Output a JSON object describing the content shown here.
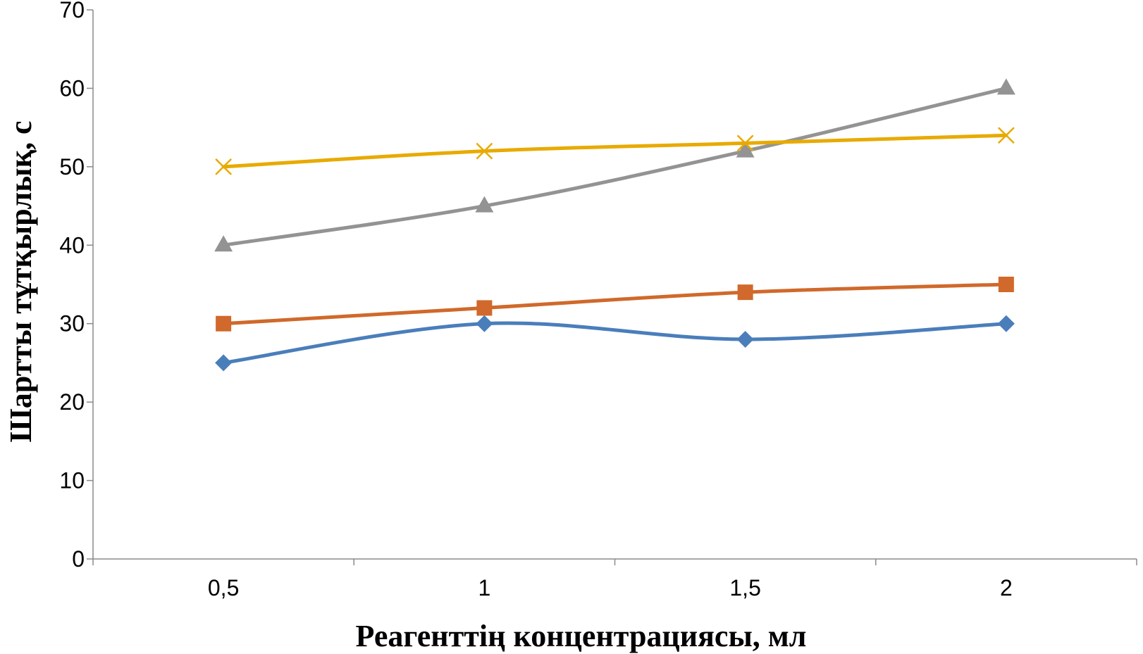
{
  "chart_data": {
    "type": "line",
    "categories": [
      "0,5",
      "1",
      "1,5",
      "2"
    ],
    "xlabel": "Реагенттің концентрациясы, мл",
    "ylabel": "Шартты тұтқырлық, с",
    "ylim": [
      0,
      70
    ],
    "yticks": [
      0,
      10,
      20,
      30,
      40,
      50,
      60,
      70
    ],
    "grid": false,
    "legend": "none",
    "series": [
      {
        "color": "#4a7ebb",
        "marker": "diamond",
        "values": [
          25,
          30,
          28,
          30
        ]
      },
      {
        "color": "#d0692b",
        "marker": "square",
        "values": [
          30,
          32,
          34,
          35
        ]
      },
      {
        "color": "#939393",
        "marker": "triangle",
        "values": [
          40,
          45,
          52,
          60
        ]
      },
      {
        "color": "#e8aa00",
        "marker": "x",
        "values": [
          50,
          52,
          53,
          54
        ]
      }
    ]
  }
}
